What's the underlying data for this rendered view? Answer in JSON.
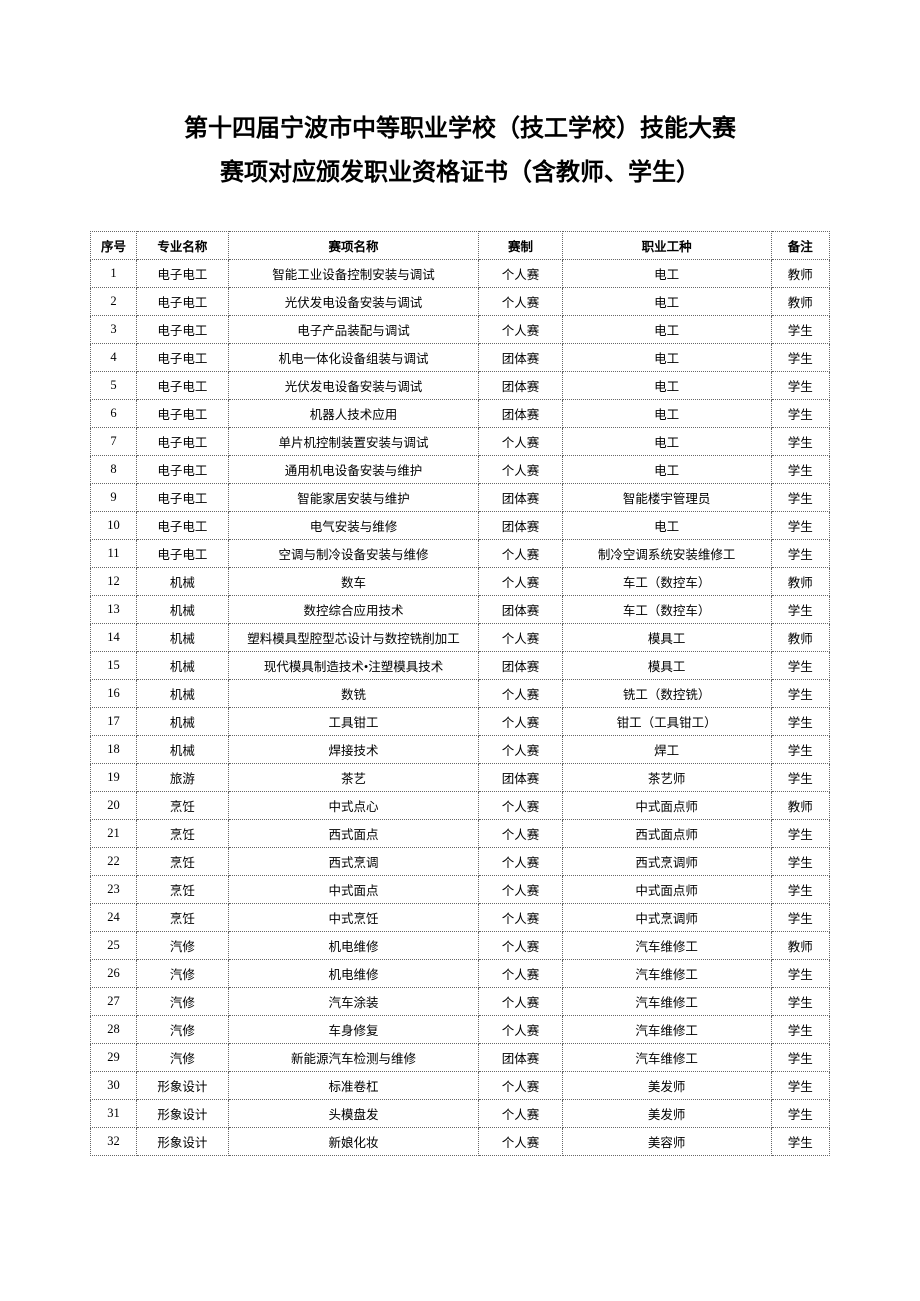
{
  "title_line1": "第十四届宁波市中等职业学校（技工学校）技能大赛",
  "title_line2": "赛项对应颁发职业资格证书（含教师、学生）",
  "table": {
    "columns": [
      "序号",
      "专业名称",
      "赛项名称",
      "赛制",
      "职业工种",
      "备注"
    ],
    "col_widths_pct": [
      5.5,
      11,
      30,
      10,
      25,
      7
    ],
    "border_color": "#666666",
    "font_size_pt": 10,
    "header_font_weight": "bold",
    "rows": [
      [
        "1",
        "电子电工",
        "智能工业设备控制安装与调试",
        "个人赛",
        "电工",
        "教师"
      ],
      [
        "2",
        "电子电工",
        "光伏发电设备安装与调试",
        "个人赛",
        "电工",
        "教师"
      ],
      [
        "3",
        "电子电工",
        "电子产品装配与调试",
        "个人赛",
        "电工",
        "学生"
      ],
      [
        "4",
        "电子电工",
        "机电一体化设备组装与调试",
        "团体赛",
        "电工",
        "学生"
      ],
      [
        "5",
        "电子电工",
        "光伏发电设备安装与调试",
        "团体赛",
        "电工",
        "学生"
      ],
      [
        "6",
        "电子电工",
        "机器人技术应用",
        "团体赛",
        "电工",
        "学生"
      ],
      [
        "7",
        "电子电工",
        "单片机控制装置安装与调试",
        "个人赛",
        "电工",
        "学生"
      ],
      [
        "8",
        "电子电工",
        "通用机电设备安装与维护",
        "个人赛",
        "电工",
        "学生"
      ],
      [
        "9",
        "电子电工",
        "智能家居安装与维护",
        "团体赛",
        "智能楼宇管理员",
        "学生"
      ],
      [
        "10",
        "电子电工",
        "电气安装与维修",
        "团体赛",
        "电工",
        "学生"
      ],
      [
        "11",
        "电子电工",
        "空调与制冷设备安装与维修",
        "个人赛",
        "制冷空调系统安装维修工",
        "学生"
      ],
      [
        "12",
        "机械",
        "数车",
        "个人赛",
        "车工（数控车）",
        "教师"
      ],
      [
        "13",
        "机械",
        "数控综合应用技术",
        "团体赛",
        "车工（数控车）",
        "学生"
      ],
      [
        "14",
        "机械",
        "塑料模具型腔型芯设计与数控铣削加工",
        "个人赛",
        "模具工",
        "教师"
      ],
      [
        "15",
        "机械",
        "现代模具制造技术•注塑模具技术",
        "团体赛",
        "模具工",
        "学生"
      ],
      [
        "16",
        "机械",
        "数铣",
        "个人赛",
        "铣工（数控铣）",
        "学生"
      ],
      [
        "17",
        "机械",
        "工具钳工",
        "个人赛",
        "钳工（工具钳工）",
        "学生"
      ],
      [
        "18",
        "机械",
        "焊接技术",
        "个人赛",
        "焊工",
        "学生"
      ],
      [
        "19",
        "旅游",
        "茶艺",
        "团体赛",
        "茶艺师",
        "学生"
      ],
      [
        "20",
        "烹饪",
        "中式点心",
        "个人赛",
        "中式面点师",
        "教师"
      ],
      [
        "21",
        "烹饪",
        "西式面点",
        "个人赛",
        "西式面点师",
        "学生"
      ],
      [
        "22",
        "烹饪",
        "西式烹调",
        "个人赛",
        "西式烹调师",
        "学生"
      ],
      [
        "23",
        "烹饪",
        "中式面点",
        "个人赛",
        "中式面点师",
        "学生"
      ],
      [
        "24",
        "烹饪",
        "中式烹饪",
        "个人赛",
        "中式烹调师",
        "学生"
      ],
      [
        "25",
        "汽修",
        "机电维修",
        "个人赛",
        "汽车维修工",
        "教师"
      ],
      [
        "26",
        "汽修",
        "机电维修",
        "个人赛",
        "汽车维修工",
        "学生"
      ],
      [
        "27",
        "汽修",
        "汽车涂装",
        "个人赛",
        "汽车维修工",
        "学生"
      ],
      [
        "28",
        "汽修",
        "车身修复",
        "个人赛",
        "汽车维修工",
        "学生"
      ],
      [
        "29",
        "汽修",
        "新能源汽车检测与维修",
        "团体赛",
        "汽车维修工",
        "学生"
      ],
      [
        "30",
        "形象设计",
        "标准卷杠",
        "个人赛",
        "美发师",
        "学生"
      ],
      [
        "31",
        "形象设计",
        "头模盘发",
        "个人赛",
        "美发师",
        "学生"
      ],
      [
        "32",
        "形象设计",
        "新娘化妆",
        "个人赛",
        "美容师",
        "学生"
      ]
    ]
  }
}
